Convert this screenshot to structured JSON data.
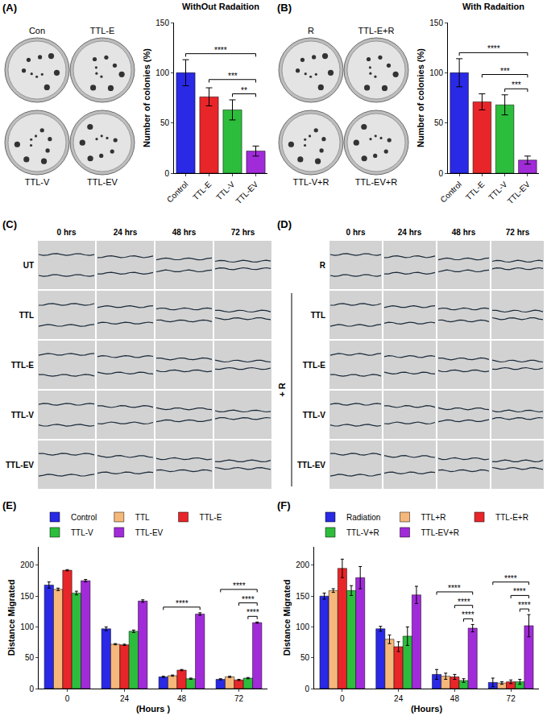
{
  "panel_labels": [
    "(A)",
    "(B)",
    "(C)",
    "(D)",
    "(E)",
    "(F)"
  ],
  "images": {
    "A": {
      "labels": [
        "Con",
        "TTL-E",
        "TTL-V",
        "TTL-EV"
      ]
    },
    "B": {
      "labels": [
        "R",
        "TTL-E+R",
        "TTL-V+R",
        "TTL-EV+R"
      ]
    },
    "C": {
      "columns": [
        "0 hrs",
        "24 hrs",
        "48 hrs",
        "72 hrs"
      ],
      "rows": [
        "UT",
        "TTL",
        "TTL-E",
        "TTL-V",
        "TTL-EV"
      ]
    },
    "D": {
      "columns": [
        "0 hrs",
        "24 hrs",
        "48 hrs",
        "72 hrs"
      ],
      "rows": [
        "R",
        "TTL",
        "TTL-E",
        "TTL-V",
        "TTL-EV"
      ],
      "group_label": "+ R"
    }
  },
  "chart_data": [
    {
      "type": "bar",
      "title": "WithOut Radaition",
      "y_label": "Number of colonies (%)",
      "categories": [
        "Control",
        "TTL-E",
        "TTL-V",
        "TTL-EV"
      ],
      "values": [
        100,
        76,
        63,
        22
      ],
      "errors": [
        13,
        9,
        10,
        5
      ],
      "colors": [
        "#2929e6",
        "#e8262a",
        "#2dbd3c",
        "#a12bd9"
      ],
      "ylim": [
        0,
        150
      ],
      "yticks": [
        0,
        50,
        100,
        150
      ],
      "significance": [
        {
          "from": "Control",
          "to": "TTL-EV",
          "label": "****"
        },
        {
          "from": "TTL-E",
          "to": "TTL-EV",
          "label": "***"
        },
        {
          "from": "TTL-V",
          "to": "TTL-EV",
          "label": "**"
        }
      ]
    },
    {
      "type": "bar",
      "title": "With Radaition",
      "y_label": "Number of colonies (%)",
      "categories": [
        "Control",
        "TTL-E",
        "TTL-V",
        "TTL-EV"
      ],
      "values": [
        100,
        71,
        68,
        13
      ],
      "errors": [
        14,
        8,
        10,
        4
      ],
      "colors": [
        "#2929e6",
        "#e8262a",
        "#2dbd3c",
        "#a12bd9"
      ],
      "ylim": [
        0,
        150
      ],
      "yticks": [
        0,
        50,
        100,
        150
      ],
      "significance": [
        {
          "from": "Control",
          "to": "TTL-EV",
          "label": "****"
        },
        {
          "from": "TTL-E",
          "to": "TTL-EV",
          "label": "***"
        },
        {
          "from": "TTL-V",
          "to": "TTL-EV",
          "label": "***"
        }
      ]
    },
    {
      "type": "bar",
      "x_label": "(Hours )",
      "y_label": "Distance Migrated",
      "categories": [
        "0",
        "24",
        "48",
        "72"
      ],
      "series": [
        {
          "name": "Control",
          "color": "#2929e6",
          "values": [
            168,
            97,
            19,
            15
          ],
          "errors": [
            5,
            3,
            1,
            1
          ]
        },
        {
          "name": "TTL",
          "color": "#f5b87a",
          "values": [
            161,
            72,
            21,
            19
          ],
          "errors": [
            2,
            1,
            1,
            1
          ]
        },
        {
          "name": "TTL-E",
          "color": "#e8262a",
          "values": [
            192,
            71,
            30,
            14
          ],
          "errors": [
            1,
            1,
            1,
            1
          ]
        },
        {
          "name": "TTL-V",
          "color": "#2dbd3c",
          "values": [
            155,
            93,
            16,
            17
          ],
          "errors": [
            3,
            2,
            1,
            1
          ]
        },
        {
          "name": "TTL-EV",
          "color": "#a12bd9",
          "values": [
            175,
            142,
            121,
            107
          ],
          "errors": [
            2,
            2,
            2,
            1
          ]
        }
      ],
      "ylim": [
        0,
        230
      ],
      "yticks": [
        0,
        50,
        100,
        150,
        200
      ],
      "legend": "top",
      "significance": [
        {
          "category": "48",
          "from": "Control",
          "to": "TTL-EV",
          "label": "****"
        },
        {
          "category": "72",
          "from": "Control",
          "to": "TTL-EV",
          "label": "****"
        },
        {
          "category": "72",
          "from": "TTL-E",
          "to": "TTL-EV",
          "label": "****"
        },
        {
          "category": "72",
          "from": "TTL-V",
          "to": "TTL-EV",
          "label": "****"
        }
      ]
    },
    {
      "type": "bar",
      "x_label": "(Hours)",
      "y_label": "Distance Migrated",
      "categories": [
        "0",
        "24",
        "48",
        "72"
      ],
      "series": [
        {
          "name": "Radiation",
          "color": "#2929e6",
          "values": [
            150,
            97,
            23,
            10
          ],
          "errors": [
            5,
            4,
            8,
            7
          ]
        },
        {
          "name": "TTL+R",
          "color": "#f5b87a",
          "values": [
            159,
            80,
            20,
            9
          ],
          "errors": [
            3,
            7,
            5,
            2
          ]
        },
        {
          "name": "TTL-E+R",
          "color": "#e8262a",
          "values": [
            195,
            68,
            19,
            11
          ],
          "errors": [
            15,
            8,
            4,
            3
          ]
        },
        {
          "name": "TTL-V+R",
          "color": "#2dbd3c",
          "values": [
            159,
            85,
            13,
            11
          ],
          "errors": [
            8,
            15,
            3,
            4
          ]
        },
        {
          "name": "TTL-EV+R",
          "color": "#a12bd9",
          "values": [
            180,
            152,
            98,
            102
          ],
          "errors": [
            18,
            14,
            6,
            18
          ]
        }
      ],
      "ylim": [
        0,
        230
      ],
      "yticks": [
        0,
        50,
        100,
        150,
        200
      ],
      "legend": "top",
      "significance": [
        {
          "category": "48",
          "from": "Radiation",
          "to": "TTL-EV+R",
          "label": "****"
        },
        {
          "category": "48",
          "from": "TTL-E+R",
          "to": "TTL-EV+R",
          "label": "****"
        },
        {
          "category": "48",
          "from": "TTL-V+R",
          "to": "TTL-EV+R",
          "label": "****"
        },
        {
          "category": "72",
          "from": "Radiation",
          "to": "TTL-EV+R",
          "label": "****"
        },
        {
          "category": "72",
          "from": "TTL-E+R",
          "to": "TTL-EV+R",
          "label": "****"
        },
        {
          "category": "72",
          "from": "TTL-V+R",
          "to": "TTL-EV+R",
          "label": "****"
        }
      ]
    }
  ]
}
